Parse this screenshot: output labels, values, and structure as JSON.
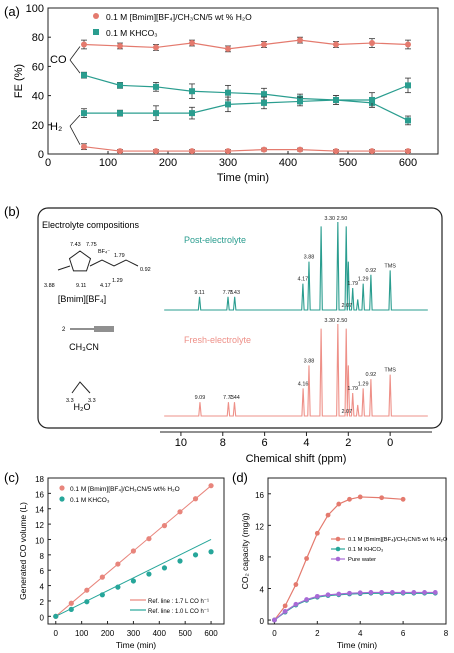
{
  "colors": {
    "il": "#e8857c",
    "khco3": "#26a69a",
    "fe_il": "#e47a6e",
    "fe_kh": "#2a9d8f",
    "pure": "#a86ad6",
    "nmr_post": "#2a9d8f",
    "nmr_fresh": "#ee9088",
    "axis": "#222222"
  },
  "chart_data": [
    {
      "panel": "(a)",
      "type": "line",
      "xlabel": "Time (min)",
      "ylabel": "FE (%)",
      "xlim": [
        0,
        650
      ],
      "ylim": [
        0,
        100
      ],
      "xticks": [
        0,
        100,
        200,
        300,
        400,
        500,
        600
      ],
      "yticks": [
        0,
        20,
        40,
        60,
        80,
        100
      ],
      "legend": [
        "0.1 M [Bmim][BF₄]/CH₃CN/5 wt % H₂O",
        "0.1 M KHCO₃"
      ],
      "annotations": [
        "CO",
        "H₂"
      ],
      "series": [
        {
          "name": "0.1 M [Bmim][BF₄]/CH₃CN/5 wt % H₂O",
          "product": "CO",
          "color": "#e47a6e",
          "x": [
            60,
            120,
            180,
            240,
            300,
            360,
            420,
            480,
            540,
            600
          ],
          "y": [
            75,
            74,
            73,
            76,
            72,
            75,
            78,
            75,
            76,
            75
          ],
          "err": [
            3,
            2,
            2,
            2,
            2,
            2,
            2,
            2,
            3,
            3
          ]
        },
        {
          "name": "0.1 M [Bmim][BF₄]/CH₃CN/5 wt % H₂O",
          "product": "H₂",
          "color": "#e47a6e",
          "x": [
            60,
            120,
            180,
            240,
            300,
            360,
            420,
            480,
            540,
            600
          ],
          "y": [
            5,
            2,
            2,
            2,
            2,
            3,
            3,
            2,
            2,
            2
          ],
          "err": [
            2,
            1,
            1,
            1,
            1,
            1,
            1,
            1,
            1,
            1
          ]
        },
        {
          "name": "0.1 M KHCO₃",
          "product": "CO",
          "color": "#2a9d8f",
          "x": [
            60,
            120,
            180,
            240,
            300,
            360,
            420,
            480,
            540,
            600
          ],
          "y": [
            54,
            47,
            46,
            43,
            42,
            41,
            38,
            37,
            35,
            23
          ],
          "err": [
            2,
            2,
            3,
            5,
            5,
            4,
            3,
            3,
            3,
            3
          ]
        },
        {
          "name": "0.1 M KHCO₃",
          "product": "H₂",
          "color": "#2a9d8f",
          "x": [
            60,
            120,
            180,
            240,
            300,
            360,
            420,
            480,
            540,
            600
          ],
          "y": [
            28,
            28,
            28,
            28,
            34,
            35,
            36,
            37,
            37,
            47
          ],
          "err": [
            3,
            2,
            5,
            4,
            5,
            4,
            3,
            3,
            5,
            5
          ]
        }
      ]
    },
    {
      "panel": "(b)",
      "type": "line",
      "xlabel": "Chemical shift (ppm)",
      "xlim": [
        11,
        -2
      ],
      "xticks": [
        10,
        8,
        6,
        4,
        2,
        0
      ],
      "box_title": "Electrolyte compositions",
      "molecule_labels": [
        "[Bmim][BF₄]",
        "CH₃CN",
        "H₂O"
      ],
      "bmim_atom_labels": [
        "7.43",
        "7.75",
        "3.88",
        "9.11",
        "4.17",
        "1.79",
        "1.29",
        "0.92",
        "BF₄⁻"
      ],
      "ch3cn_atom_label": "2",
      "h2o_atom_labels": [
        "3.3",
        "3.3"
      ],
      "series": [
        {
          "name": "Post-electrolyte",
          "color": "#2a9d8f",
          "peaks_ppm": [
            9.11,
            7.75,
            7.43,
            4.17,
            3.88,
            3.3,
            2.5,
            2.1,
            2.0,
            1.79,
            1.55,
            1.29,
            0.92,
            0.0
          ],
          "peaks_int": [
            0.15,
            0.15,
            0.15,
            0.3,
            0.55,
            0.95,
            1.0,
            0.95,
            0.55,
            0.25,
            0.12,
            0.3,
            0.4,
            0.45
          ],
          "labels": [
            {
              "ppm": 9.11,
              "text": "9.11"
            },
            {
              "ppm": 7.75,
              "text": "7.75"
            },
            {
              "ppm": 7.43,
              "text": "7.43"
            },
            {
              "ppm": 4.17,
              "text": "4.17"
            },
            {
              "ppm": 3.88,
              "text": "3.88"
            },
            {
              "ppm": 2.5,
              "text": "3.30 2.50"
            },
            {
              "ppm": 2.07,
              "text": "2.07"
            },
            {
              "ppm": 1.79,
              "text": "1.79"
            },
            {
              "ppm": 1.29,
              "text": "1.29"
            },
            {
              "ppm": 0.92,
              "text": "0.92"
            },
            {
              "ppm": 0.0,
              "text": "TMS"
            }
          ]
        },
        {
          "name": "Fresh-electrolyte",
          "color": "#ee9088",
          "peaks_ppm": [
            9.09,
            7.73,
            7.44,
            4.16,
            3.88,
            3.3,
            2.5,
            2.1,
            2.0,
            1.79,
            1.55,
            1.29,
            0.92,
            0.0
          ],
          "peaks_int": [
            0.15,
            0.15,
            0.15,
            0.3,
            0.55,
            0.95,
            1.0,
            0.95,
            0.55,
            0.25,
            0.12,
            0.3,
            0.4,
            0.45
          ],
          "labels": [
            {
              "ppm": 9.09,
              "text": "9.09"
            },
            {
              "ppm": 7.73,
              "text": "7.73"
            },
            {
              "ppm": 7.44,
              "text": "7.44"
            },
            {
              "ppm": 4.16,
              "text": "4.16"
            },
            {
              "ppm": 3.88,
              "text": "3.88"
            },
            {
              "ppm": 2.5,
              "text": "3.30 2.50"
            },
            {
              "ppm": 2.07,
              "text": "2.07"
            },
            {
              "ppm": 1.79,
              "text": "1.79"
            },
            {
              "ppm": 1.29,
              "text": "1.29"
            },
            {
              "ppm": 0.92,
              "text": "0.92"
            },
            {
              "ppm": 0.0,
              "text": "TMS"
            }
          ]
        }
      ]
    },
    {
      "panel": "(c)",
      "type": "scatter",
      "xlabel": "Time (min)",
      "ylabel": "Generated CO volume (L)",
      "xlim": [
        -30,
        650
      ],
      "ylim": [
        -1,
        18
      ],
      "xticks": [
        0,
        100,
        200,
        300,
        400,
        500,
        600
      ],
      "yticks": [
        0,
        2,
        4,
        6,
        8,
        10,
        12,
        14,
        16,
        18
      ],
      "legend": [
        "0.1 M [Bmim][BF₄]/CH₃CN/5 wt% H₂O",
        "0.1 M KHCO₃"
      ],
      "ref_lines": [
        {
          "name": "Ref. line : 1.7 L CO h⁻¹",
          "color": "#e8857c",
          "slope_L_per_h": 1.7,
          "x": [
            0,
            600
          ]
        },
        {
          "name": "Ref. line : 1.0 L CO h⁻¹",
          "color": "#26a69a",
          "slope_L_per_h": 1.0,
          "x": [
            0,
            600
          ]
        }
      ],
      "series": [
        {
          "name": "0.1 M [Bmim][BF₄]/CH₃CN/5 wt% H₂O",
          "color": "#e8857c",
          "x": [
            0,
            60,
            120,
            180,
            240,
            300,
            360,
            420,
            480,
            540,
            600
          ],
          "y": [
            0,
            1.7,
            3.4,
            5.1,
            6.8,
            8.5,
            10.1,
            11.8,
            13.6,
            15.3,
            17.0
          ]
        },
        {
          "name": "0.1 M KHCO₃",
          "color": "#26a69a",
          "x": [
            0,
            60,
            120,
            180,
            240,
            300,
            360,
            420,
            480,
            540,
            600
          ],
          "y": [
            0,
            0.9,
            1.9,
            2.8,
            3.8,
            4.6,
            5.5,
            6.3,
            7.2,
            8.0,
            8.4
          ]
        }
      ]
    },
    {
      "panel": "(d)",
      "type": "line",
      "xlabel": "Time (min)",
      "ylabel": "CO₂ capacity (mg/g)",
      "xlim": [
        -0.3,
        8
      ],
      "ylim": [
        -0.5,
        18
      ],
      "xticks": [
        0,
        2,
        4,
        6,
        8
      ],
      "yticks": [
        0,
        4,
        8,
        12,
        16
      ],
      "legend": [
        "0.1 M [Bmim][BF₄]/CH₃CN/5 wt % H₂O",
        "0.1 M KHCO₃",
        "Pure water"
      ],
      "series": [
        {
          "name": "0.1 M [Bmim][BF₄]/CH₃CN/5 wt % H₂O",
          "color": "#e47a6e",
          "x": [
            0,
            0.5,
            1.0,
            1.5,
            2.0,
            2.5,
            3.0,
            3.5,
            4.0,
            5.0,
            6.0
          ],
          "y": [
            0,
            1.8,
            4.5,
            7.8,
            11.0,
            13.3,
            14.7,
            15.3,
            15.6,
            15.5,
            15.3
          ]
        },
        {
          "name": "0.1 M KHCO₃",
          "color": "#26a69a",
          "x": [
            0,
            0.5,
            1.0,
            1.5,
            2.0,
            2.5,
            3.0,
            3.5,
            4.0,
            4.5,
            5.0,
            5.5,
            6.0,
            6.5,
            7.0,
            7.5
          ],
          "y": [
            0,
            1.0,
            1.9,
            2.5,
            2.9,
            3.1,
            3.2,
            3.3,
            3.35,
            3.4,
            3.4,
            3.4,
            3.4,
            3.4,
            3.4,
            3.4
          ]
        },
        {
          "name": "Pure water",
          "color": "#a86ad6",
          "x": [
            0,
            0.5,
            1.0,
            1.5,
            2.0,
            2.5,
            3.0,
            3.5,
            4.0,
            4.5,
            5.0,
            5.5,
            6.0,
            6.5,
            7.0,
            7.5
          ],
          "y": [
            0,
            1.1,
            2.0,
            2.6,
            3.0,
            3.2,
            3.3,
            3.4,
            3.45,
            3.5,
            3.5,
            3.5,
            3.5,
            3.5,
            3.5,
            3.5
          ]
        }
      ]
    }
  ]
}
